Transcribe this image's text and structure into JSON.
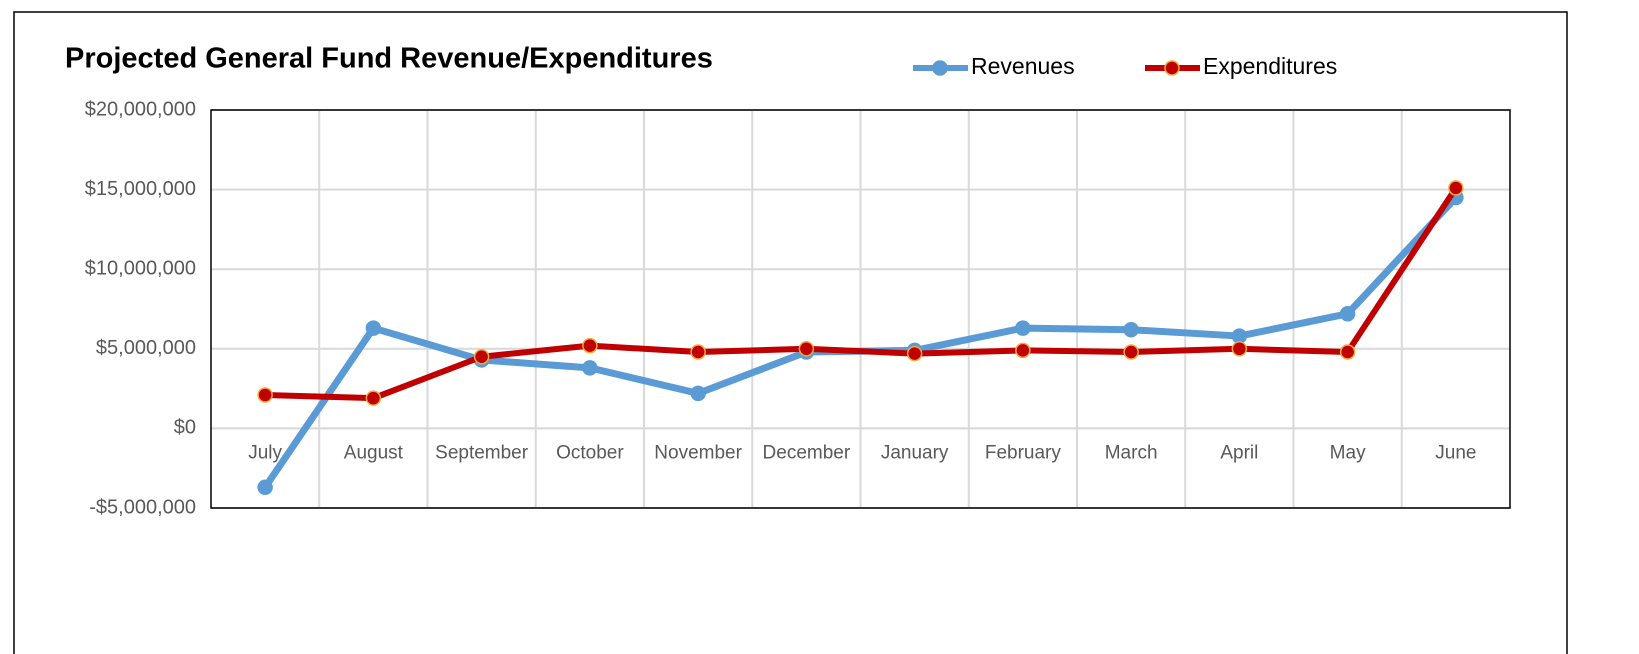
{
  "chart_data": {
    "type": "line",
    "title": "Projected General Fund Revenue/Expenditures",
    "categories": [
      "July",
      "August",
      "September",
      "October",
      "November",
      "December",
      "January",
      "February",
      "March",
      "April",
      "May",
      "June"
    ],
    "series": [
      {
        "name": "Revenues",
        "color": "#5b9bd5",
        "values": [
          -3700000,
          6300000,
          4300000,
          3800000,
          2200000,
          4800000,
          4900000,
          6300000,
          6200000,
          5800000,
          7200000,
          14500000
        ]
      },
      {
        "name": "Expenditures",
        "color": "#c00000",
        "values": [
          2100000,
          1900000,
          4500000,
          5200000,
          4800000,
          5000000,
          4700000,
          4900000,
          4800000,
          5000000,
          4800000,
          15100000
        ]
      }
    ],
    "ylim": [
      -5000000,
      20000000
    ],
    "yticks": [
      {
        "value": -5000000,
        "label": "-$5,000,000"
      },
      {
        "value": 0,
        "label": "$0"
      },
      {
        "value": 5000000,
        "label": "$5,000,000"
      },
      {
        "value": 10000000,
        "label": "$10,000,000"
      },
      {
        "value": 15000000,
        "label": "$15,000,000"
      },
      {
        "value": 20000000,
        "label": "$20,000,000"
      }
    ],
    "grid": true,
    "legend": "top"
  }
}
